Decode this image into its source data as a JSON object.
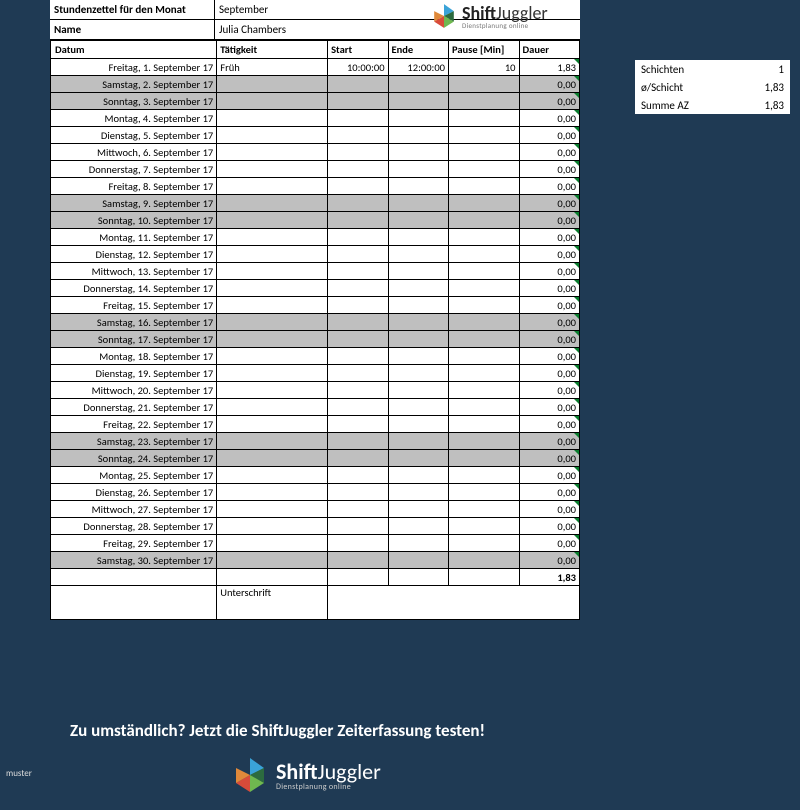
{
  "colors": {
    "page_bg": "#1f3a54",
    "weekend_bg": "#bfbfbf",
    "cell_border": "#000000",
    "marker": "#0a7d2e",
    "sheet_bg": "#ffffff"
  },
  "header": {
    "title_label": "Stundenzettel für den Monat",
    "month": "September",
    "name_label": "Name",
    "name_value": "Julia Chambers"
  },
  "logo": {
    "brand_bold": "Shift",
    "brand_rest": "Juggler",
    "tagline": "Dienstplanung online"
  },
  "columns": {
    "datum": "Datum",
    "taetigkeit": "Tätigkeit",
    "start": "Start",
    "ende": "Ende",
    "pause": "Pause [Min]",
    "dauer": "Dauer"
  },
  "rows": [
    {
      "date": "Freitag, 1. September 17",
      "tat": "Früh",
      "start": "10:00:00",
      "ende": "12:00:00",
      "pause": "10",
      "dauer": "1,83",
      "weekend": false
    },
    {
      "date": "Samstag, 2. September 17",
      "tat": "",
      "start": "",
      "ende": "",
      "pause": "",
      "dauer": "0,00",
      "weekend": true
    },
    {
      "date": "Sonntag, 3. September 17",
      "tat": "",
      "start": "",
      "ende": "",
      "pause": "",
      "dauer": "0,00",
      "weekend": true
    },
    {
      "date": "Montag, 4. September 17",
      "tat": "",
      "start": "",
      "ende": "",
      "pause": "",
      "dauer": "0,00",
      "weekend": false
    },
    {
      "date": "Dienstag, 5. September 17",
      "tat": "",
      "start": "",
      "ende": "",
      "pause": "",
      "dauer": "0,00",
      "weekend": false
    },
    {
      "date": "Mittwoch, 6. September 17",
      "tat": "",
      "start": "",
      "ende": "",
      "pause": "",
      "dauer": "0,00",
      "weekend": false
    },
    {
      "date": "Donnerstag, 7. September 17",
      "tat": "",
      "start": "",
      "ende": "",
      "pause": "",
      "dauer": "0,00",
      "weekend": false
    },
    {
      "date": "Freitag, 8. September 17",
      "tat": "",
      "start": "",
      "ende": "",
      "pause": "",
      "dauer": "0,00",
      "weekend": false
    },
    {
      "date": "Samstag, 9. September 17",
      "tat": "",
      "start": "",
      "ende": "",
      "pause": "",
      "dauer": "0,00",
      "weekend": true
    },
    {
      "date": "Sonntag, 10. September 17",
      "tat": "",
      "start": "",
      "ende": "",
      "pause": "",
      "dauer": "0,00",
      "weekend": true
    },
    {
      "date": "Montag, 11. September 17",
      "tat": "",
      "start": "",
      "ende": "",
      "pause": "",
      "dauer": "0,00",
      "weekend": false
    },
    {
      "date": "Dienstag, 12. September 17",
      "tat": "",
      "start": "",
      "ende": "",
      "pause": "",
      "dauer": "0,00",
      "weekend": false
    },
    {
      "date": "Mittwoch, 13. September 17",
      "tat": "",
      "start": "",
      "ende": "",
      "pause": "",
      "dauer": "0,00",
      "weekend": false
    },
    {
      "date": "Donnerstag, 14. September 17",
      "tat": "",
      "start": "",
      "ende": "",
      "pause": "",
      "dauer": "0,00",
      "weekend": false
    },
    {
      "date": "Freitag, 15. September 17",
      "tat": "",
      "start": "",
      "ende": "",
      "pause": "",
      "dauer": "0,00",
      "weekend": false
    },
    {
      "date": "Samstag, 16. September 17",
      "tat": "",
      "start": "",
      "ende": "",
      "pause": "",
      "dauer": "0,00",
      "weekend": true
    },
    {
      "date": "Sonntag, 17. September 17",
      "tat": "",
      "start": "",
      "ende": "",
      "pause": "",
      "dauer": "0,00",
      "weekend": true
    },
    {
      "date": "Montag, 18. September 17",
      "tat": "",
      "start": "",
      "ende": "",
      "pause": "",
      "dauer": "0,00",
      "weekend": false
    },
    {
      "date": "Dienstag, 19. September 17",
      "tat": "",
      "start": "",
      "ende": "",
      "pause": "",
      "dauer": "0,00",
      "weekend": false
    },
    {
      "date": "Mittwoch, 20. September 17",
      "tat": "",
      "start": "",
      "ende": "",
      "pause": "",
      "dauer": "0,00",
      "weekend": false
    },
    {
      "date": "Donnerstag, 21. September 17",
      "tat": "",
      "start": "",
      "ende": "",
      "pause": "",
      "dauer": "0,00",
      "weekend": false
    },
    {
      "date": "Freitag, 22. September 17",
      "tat": "",
      "start": "",
      "ende": "",
      "pause": "",
      "dauer": "0,00",
      "weekend": false
    },
    {
      "date": "Samstag, 23. September 17",
      "tat": "",
      "start": "",
      "ende": "",
      "pause": "",
      "dauer": "0,00",
      "weekend": true
    },
    {
      "date": "Sonntag, 24. September 17",
      "tat": "",
      "start": "",
      "ende": "",
      "pause": "",
      "dauer": "0,00",
      "weekend": true
    },
    {
      "date": "Montag, 25. September 17",
      "tat": "",
      "start": "",
      "ende": "",
      "pause": "",
      "dauer": "0,00",
      "weekend": false
    },
    {
      "date": "Dienstag, 26. September 17",
      "tat": "",
      "start": "",
      "ende": "",
      "pause": "",
      "dauer": "0,00",
      "weekend": false
    },
    {
      "date": "Mittwoch, 27. September 17",
      "tat": "",
      "start": "",
      "ende": "",
      "pause": "",
      "dauer": "0,00",
      "weekend": false
    },
    {
      "date": "Donnerstag, 28. September 17",
      "tat": "",
      "start": "",
      "ende": "",
      "pause": "",
      "dauer": "0,00",
      "weekend": false
    },
    {
      "date": "Freitag, 29. September 17",
      "tat": "",
      "start": "",
      "ende": "",
      "pause": "",
      "dauer": "0,00",
      "weekend": false
    },
    {
      "date": "Samstag, 30. September 17",
      "tat": "",
      "start": "",
      "ende": "",
      "pause": "",
      "dauer": "0,00",
      "weekend": true
    }
  ],
  "sum": {
    "dauer": "1,83"
  },
  "signature_label": "Unterschrift",
  "stats": {
    "schichten_label": "Schichten",
    "schichten_val": "1",
    "avg_label": "ø/Schicht",
    "avg_val": "1,83",
    "summe_label": "Summe AZ",
    "summe_val": "1,83"
  },
  "cta": "Zu umständlich? Jetzt die ShiftJuggler Zeiterfassung testen!",
  "watermark": "muster"
}
